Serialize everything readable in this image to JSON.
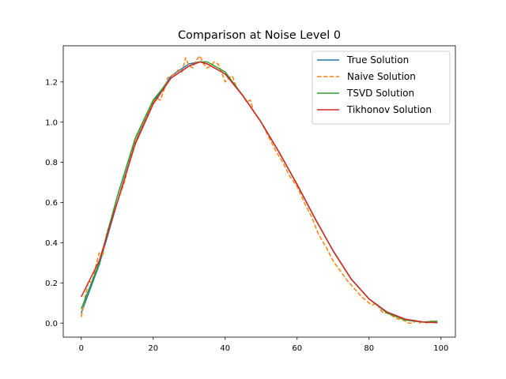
{
  "chart_data": {
    "type": "line",
    "title": "Comparison at Noise Level 0",
    "xlabel": "",
    "ylabel": "",
    "xlim": [
      -5,
      104
    ],
    "ylim": [
      -0.07,
      1.38
    ],
    "xticks": [
      0,
      20,
      40,
      60,
      80,
      100
    ],
    "yticks": [
      0.0,
      0.2,
      0.4,
      0.6,
      0.8,
      1.0,
      1.2
    ],
    "xtick_labels": [
      "0",
      "20",
      "40",
      "60",
      "80",
      "100"
    ],
    "ytick_labels": [
      "0.0",
      "0.2",
      "0.4",
      "0.6",
      "0.8",
      "1.0",
      "1.2"
    ],
    "grid": false,
    "legend_position": "top-right",
    "series": [
      {
        "name": "True Solution",
        "color": "#1f77b4",
        "style": "solid",
        "x": [
          0,
          5,
          10,
          15,
          20,
          25,
          30,
          33,
          35,
          40,
          45,
          50,
          55,
          60,
          65,
          70,
          75,
          80,
          85,
          90,
          95,
          99
        ],
        "y": [
          0.05,
          0.29,
          0.6,
          0.9,
          1.1,
          1.23,
          1.29,
          1.3,
          1.29,
          1.24,
          1.13,
          1.0,
          0.85,
          0.69,
          0.52,
          0.36,
          0.22,
          0.12,
          0.055,
          0.02,
          0.005,
          0.002
        ]
      },
      {
        "name": "Naive Solution",
        "color": "#ff7f0e",
        "style": "dashed",
        "x": [
          0,
          1,
          2,
          3,
          4,
          5,
          6,
          7,
          8,
          9,
          10,
          12,
          14,
          16,
          18,
          20,
          21,
          22,
          23,
          24,
          25,
          26,
          27,
          28,
          29,
          30,
          31,
          32,
          33,
          34,
          35,
          36,
          37,
          38,
          39,
          40,
          41,
          42,
          43,
          44,
          45,
          46,
          47,
          48,
          50,
          52,
          54,
          56,
          58,
          60,
          62,
          64,
          66,
          68,
          70,
          72,
          74,
          76,
          78,
          80,
          81,
          82,
          83,
          84,
          85,
          86,
          87,
          88,
          89,
          90,
          91,
          92,
          93,
          94,
          95,
          96,
          97,
          98,
          99
        ],
        "y": [
          0.03,
          0.12,
          0.21,
          0.2,
          0.28,
          0.35,
          0.34,
          0.44,
          0.5,
          0.55,
          0.6,
          0.7,
          0.85,
          0.95,
          1.02,
          1.1,
          1.12,
          1.11,
          1.16,
          1.22,
          1.23,
          1.24,
          1.26,
          1.25,
          1.32,
          1.28,
          1.27,
          1.31,
          1.33,
          1.29,
          1.27,
          1.28,
          1.3,
          1.29,
          1.25,
          1.2,
          1.22,
          1.23,
          1.18,
          1.15,
          1.13,
          1.1,
          1.11,
          1.05,
          1.0,
          0.93,
          0.86,
          0.8,
          0.73,
          0.68,
          0.6,
          0.53,
          0.44,
          0.38,
          0.31,
          0.26,
          0.21,
          0.17,
          0.13,
          0.1,
          0.09,
          0.1,
          0.07,
          0.05,
          0.05,
          0.04,
          0.03,
          0.02,
          0.02,
          0.01,
          0.0,
          0.0,
          0.01,
          0.0,
          0.01,
          0.0,
          0.01,
          0.0,
          0.01
        ]
      },
      {
        "name": "TSVD Solution",
        "color": "#2ca02c",
        "style": "solid",
        "x": [
          0,
          5,
          10,
          15,
          20,
          25,
          30,
          33,
          35,
          40,
          45,
          50,
          55,
          60,
          65,
          70,
          75,
          80,
          85,
          90,
          95,
          99
        ],
        "y": [
          0.07,
          0.3,
          0.63,
          0.92,
          1.11,
          1.22,
          1.28,
          1.3,
          1.3,
          1.25,
          1.13,
          1.0,
          0.85,
          0.69,
          0.52,
          0.36,
          0.22,
          0.12,
          0.05,
          0.015,
          0.005,
          0.01
        ]
      },
      {
        "name": "Tikhonov Solution",
        "color": "#d62728",
        "style": "solid",
        "x": [
          0,
          5,
          10,
          15,
          20,
          25,
          30,
          33,
          35,
          40,
          45,
          50,
          55,
          60,
          65,
          70,
          75,
          80,
          85,
          90,
          95,
          99
        ],
        "y": [
          0.13,
          0.31,
          0.6,
          0.89,
          1.09,
          1.22,
          1.28,
          1.3,
          1.29,
          1.24,
          1.13,
          1.0,
          0.85,
          0.69,
          0.52,
          0.36,
          0.22,
          0.12,
          0.055,
          0.02,
          0.005,
          0.002
        ]
      }
    ]
  }
}
